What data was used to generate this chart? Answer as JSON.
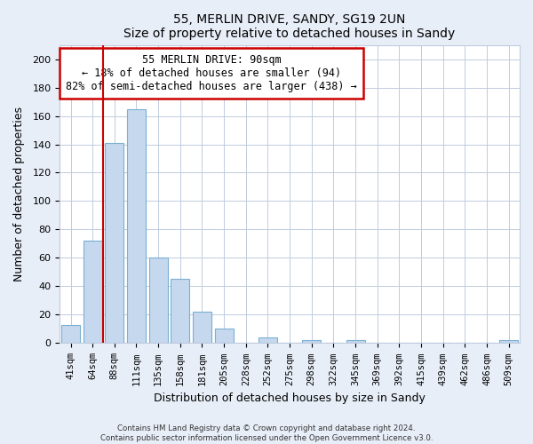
{
  "title": "55, MERLIN DRIVE, SANDY, SG19 2UN",
  "subtitle": "Size of property relative to detached houses in Sandy",
  "xlabel": "Distribution of detached houses by size in Sandy",
  "ylabel": "Number of detached properties",
  "bar_color": "#c5d8ee",
  "bar_edge_color": "#7aafd4",
  "vline_color": "#cc0000",
  "vline_x_idx": 2,
  "categories": [
    "41sqm",
    "64sqm",
    "88sqm",
    "111sqm",
    "135sqm",
    "158sqm",
    "181sqm",
    "205sqm",
    "228sqm",
    "252sqm",
    "275sqm",
    "298sqm",
    "322sqm",
    "345sqm",
    "369sqm",
    "392sqm",
    "415sqm",
    "439sqm",
    "462sqm",
    "486sqm",
    "509sqm"
  ],
  "values": [
    13,
    72,
    141,
    165,
    60,
    45,
    22,
    10,
    0,
    4,
    0,
    2,
    0,
    2,
    0,
    0,
    0,
    0,
    0,
    0,
    2
  ],
  "ylim": [
    0,
    210
  ],
  "yticks": [
    0,
    20,
    40,
    60,
    80,
    100,
    120,
    140,
    160,
    180,
    200
  ],
  "annotation_title": "55 MERLIN DRIVE: 90sqm",
  "annotation_line1": "← 18% of detached houses are smaller (94)",
  "annotation_line2": "82% of semi-detached houses are larger (438) →",
  "footer1": "Contains HM Land Registry data © Crown copyright and database right 2024.",
  "footer2": "Contains public sector information licensed under the Open Government Licence v3.0.",
  "background_color": "#e8eef8",
  "plot_bg_color": "#ffffff",
  "grid_color": "#c0ccde"
}
